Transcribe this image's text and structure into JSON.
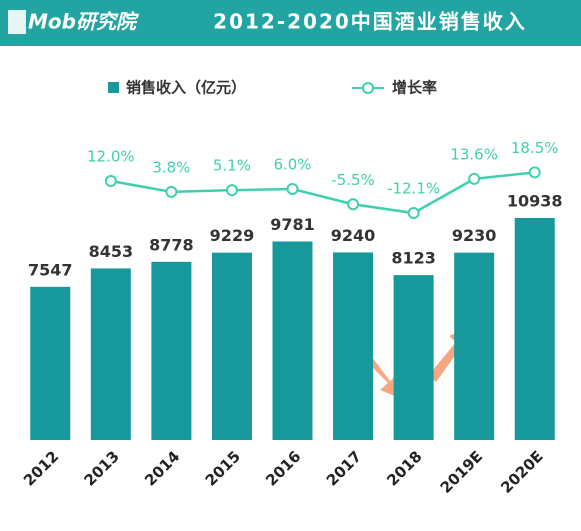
{
  "logo": "Mob研究院",
  "chart_data": {
    "type": "bar-line",
    "title": "2012-2020中国酒业销售收入",
    "categories": [
      "2012",
      "2013",
      "2014",
      "2015",
      "2016",
      "2017",
      "2018",
      "2019E",
      "2020E"
    ],
    "series": [
      {
        "name": "销售收入（亿元）",
        "type": "bar",
        "color": "#17999b",
        "values": [
          7547,
          8453,
          8778,
          9229,
          9781,
          9240,
          8123,
          9230,
          10938
        ]
      },
      {
        "name": "增长率",
        "type": "line",
        "axis": "y2",
        "color": "#3fd0ae",
        "values": [
          null,
          12.0,
          3.8,
          5.1,
          6.0,
          -5.5,
          -12.1,
          13.6,
          18.5
        ],
        "value_labels": [
          null,
          "12.0%",
          "3.8%",
          "5.1%",
          "6.0%",
          "-5.5%",
          "-12.1%",
          "13.6%",
          "18.5%"
        ]
      }
    ],
    "ylim": [
      0,
      16750
    ],
    "y2lim": [
      -183,
      73
    ],
    "legend": "top"
  }
}
